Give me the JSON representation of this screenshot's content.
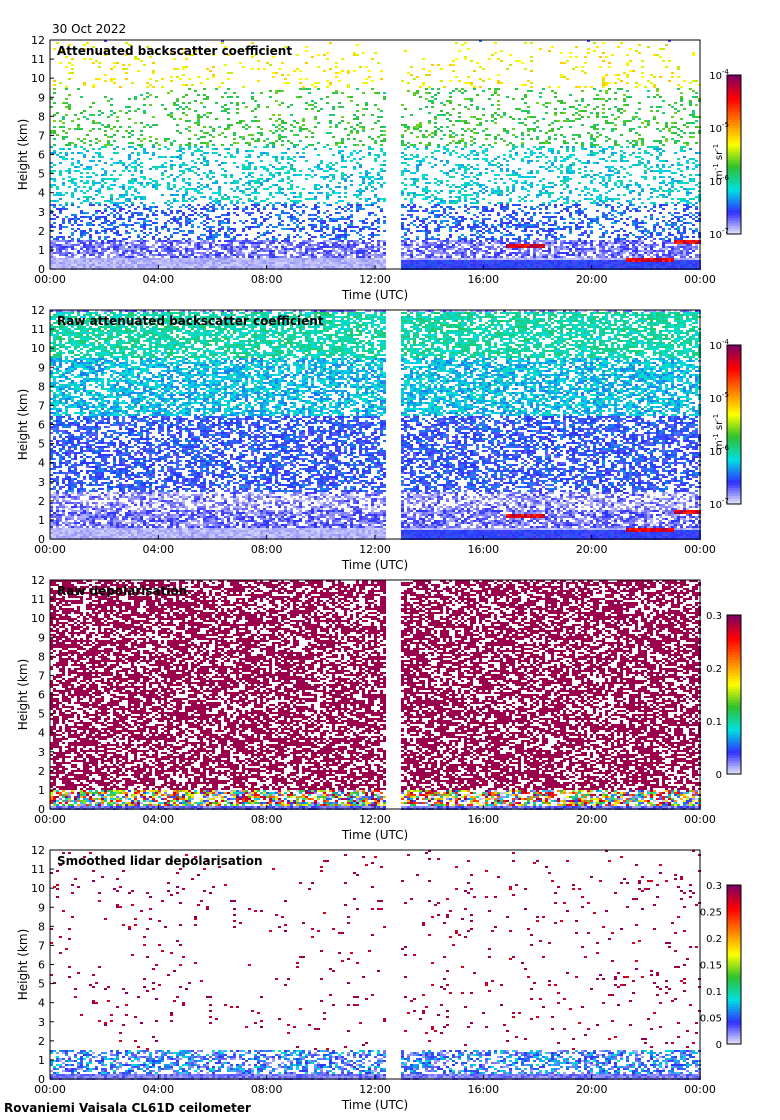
{
  "header": {
    "date": "30 Oct 2022"
  },
  "footer": {
    "site": "Rovaniemi Vaisala CL61D ceilometer"
  },
  "chart_data": [
    {
      "type": "heatmap",
      "title": "Attenuated backscatter coefficient",
      "xlabel": "Time (UTC)",
      "ylabel": "Height (km)",
      "x_ticks": [
        "00:00",
        "04:00",
        "08:00",
        "12:00",
        "16:00",
        "20:00",
        "00:00"
      ],
      "y_ticks": [
        "0",
        "1",
        "2",
        "3",
        "4",
        "5",
        "6",
        "7",
        "8",
        "9",
        "10",
        "11",
        "12"
      ],
      "ylim": [
        0,
        12
      ],
      "xlim_hours": [
        0,
        24
      ],
      "data_gap_hours": [
        12.3,
        12.85
      ],
      "colorbar": {
        "scale": "log",
        "range": [
          1e-07,
          0.0001
        ],
        "tick_mantissa": [
          "10",
          "10",
          "10",
          "10"
        ],
        "tick_exponent": [
          "-4",
          "-5",
          "-6",
          "-7"
        ],
        "unit_parts": [
          "m",
          "-1",
          " sr",
          "-1"
        ],
        "colormap": [
          "#f0f0f8",
          "#3030ff",
          "#00e0e0",
          "#30c030",
          "#ffff00",
          "#ff8000",
          "#ff0000",
          "#800060"
        ]
      },
      "features": {
        "noise_levels_km": [
          [
            0,
            3.5,
            0.18
          ],
          [
            3.5,
            6.5,
            0.28
          ],
          [
            6.5,
            9.5,
            0.42
          ],
          [
            9.5,
            12,
            0.58
          ]
        ],
        "dense_noise": false,
        "cloud_layers": [
          {
            "t0": 16.8,
            "t1": 18.2,
            "h": 1.25
          },
          {
            "t0": 21.2,
            "t1": 23.0,
            "h": 0.5
          },
          {
            "t0": 23.0,
            "t1": 24.0,
            "h": 1.45
          }
        ]
      }
    },
    {
      "type": "heatmap",
      "title": "Raw attenuated backscatter coefficient",
      "xlabel": "Time (UTC)",
      "ylabel": "Height (km)",
      "x_ticks": [
        "00:00",
        "04:00",
        "08:00",
        "12:00",
        "16:00",
        "20:00",
        "00:00"
      ],
      "y_ticks": [
        "0",
        "1",
        "2",
        "3",
        "4",
        "5",
        "6",
        "7",
        "8",
        "9",
        "10",
        "11",
        "12"
      ],
      "ylim": [
        0,
        12
      ],
      "xlim_hours": [
        0,
        24
      ],
      "data_gap_hours": [
        12.3,
        12.85
      ],
      "colorbar": {
        "scale": "log",
        "range": [
          1e-07,
          0.0001
        ],
        "tick_mantissa": [
          "10",
          "10",
          "10",
          "10"
        ],
        "tick_exponent": [
          "-4",
          "-5",
          "-6",
          "-7"
        ],
        "unit_parts": [
          "m",
          "-1",
          " sr",
          "-1"
        ],
        "colormap": [
          "#f0f0f8",
          "#3030ff",
          "#00e0e0",
          "#30c030",
          "#ffff00",
          "#ff8000",
          "#ff0000",
          "#800060"
        ]
      },
      "features": {
        "noise_levels_km": [
          [
            0,
            2.5,
            0.08
          ],
          [
            2.5,
            6.5,
            0.16
          ],
          [
            6.5,
            9.5,
            0.26
          ],
          [
            9.5,
            12,
            0.33
          ]
        ],
        "dense_noise": true,
        "cloud_layers": [
          {
            "t0": 16.8,
            "t1": 18.2,
            "h": 1.25
          },
          {
            "t0": 21.2,
            "t1": 23.0,
            "h": 0.5
          },
          {
            "t0": 23.0,
            "t1": 24.0,
            "h": 1.45
          }
        ]
      }
    },
    {
      "type": "heatmap",
      "title": "Raw depolarisation",
      "xlabel": "Time (UTC)",
      "ylabel": "Height (km)",
      "x_ticks": [
        "00:00",
        "04:00",
        "08:00",
        "12:00",
        "16:00",
        "20:00",
        "00:00"
      ],
      "y_ticks": [
        "0",
        "1",
        "2",
        "3",
        "4",
        "5",
        "6",
        "7",
        "8",
        "9",
        "10",
        "11",
        "12"
      ],
      "ylim": [
        0,
        12
      ],
      "xlim_hours": [
        0,
        24
      ],
      "data_gap_hours": [
        12.3,
        12.85
      ],
      "colorbar": {
        "scale": "linear",
        "range": [
          0,
          0.3
        ],
        "ticks": [
          "0.3",
          "0.2",
          "0.1",
          "0"
        ],
        "colormap": [
          "#f0f0f8",
          "#3030ff",
          "#00e0e0",
          "#30c030",
          "#ffff00",
          "#ff8000",
          "#ff0000",
          "#800060"
        ]
      },
      "features": {
        "depol_mode": "raw",
        "near_surface_km": 1.0
      }
    },
    {
      "type": "heatmap",
      "title": "Smoothed lidar depolarisation",
      "xlabel": "Time (UTC)",
      "ylabel": "Height (km)",
      "x_ticks": [
        "00:00",
        "04:00",
        "08:00",
        "12:00",
        "16:00",
        "20:00",
        "00:00"
      ],
      "y_ticks": [
        "0",
        "1",
        "2",
        "3",
        "4",
        "5",
        "6",
        "7",
        "8",
        "9",
        "10",
        "11",
        "12"
      ],
      "ylim": [
        0,
        12
      ],
      "xlim_hours": [
        0,
        24
      ],
      "data_gap_hours": [
        12.3,
        12.85
      ],
      "colorbar": {
        "scale": "linear",
        "range": [
          0,
          0.3
        ],
        "ticks": [
          "0.3",
          "0.25",
          "0.2",
          "0.15",
          "0.1",
          "0.05",
          "0"
        ],
        "colormap": [
          "#f0f0f8",
          "#3030ff",
          "#00e0e0",
          "#30c030",
          "#ffff00",
          "#ff8000",
          "#ff0000",
          "#800060"
        ]
      },
      "features": {
        "depol_mode": "smoothed",
        "near_surface_km": 1.6
      }
    }
  ]
}
